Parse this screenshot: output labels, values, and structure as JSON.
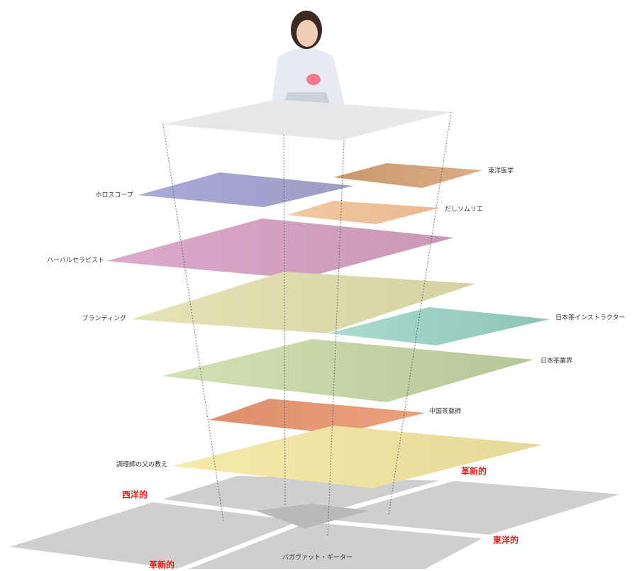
{
  "layers": [
    {
      "label": "東洋医学"
    },
    {
      "label": "ホロスコープ"
    },
    {
      "label": "だしソムリエ"
    },
    {
      "label": "ハーバルセラピスト"
    },
    {
      "label": "ブランディング"
    },
    {
      "label": "日本茶インストラクター"
    },
    {
      "label": "日本茶業界"
    },
    {
      "label": "中国茶藝師"
    },
    {
      "label": "調理師の父の教え"
    }
  ],
  "base": {
    "west": "西洋的",
    "east": "東洋的",
    "innovative_back": "革新的",
    "innovative_front": "革新的",
    "foundation": "バガヴァット・ギーター"
  }
}
